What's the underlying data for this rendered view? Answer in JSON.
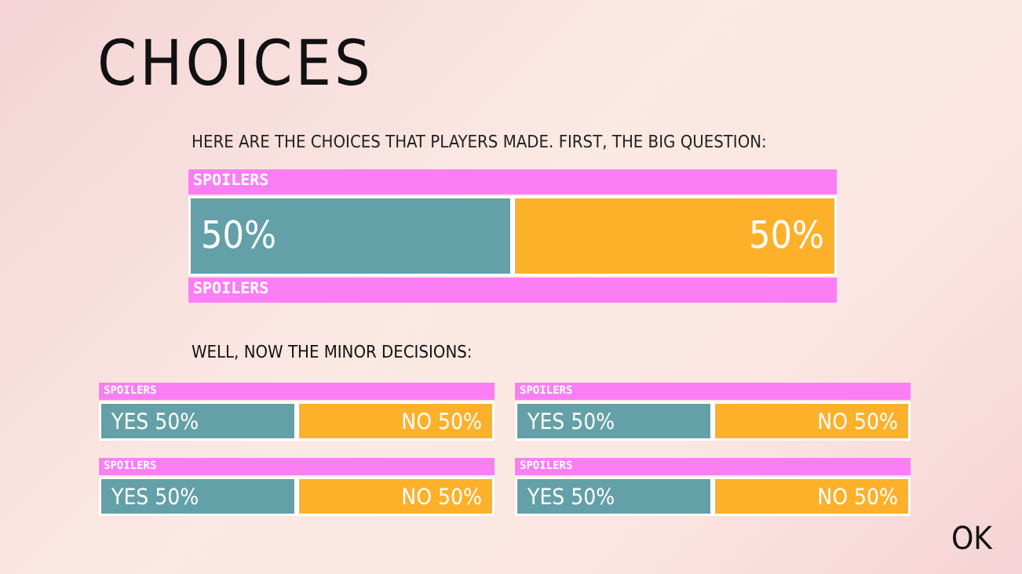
{
  "chart_data": [
    {
      "type": "bar",
      "title": "CHOICES",
      "subtitle": "HERE ARE THE CHOICES THAT PLAYERS MADE. FIRST, THE BIG QUESTION:",
      "orientation": "horizontal",
      "stacked": true,
      "categories": [
        null
      ],
      "xlim": [
        0,
        100
      ],
      "tick_labels": false,
      "annotations": [
        "SPOILERS",
        "SPOILERS"
      ],
      "series": [
        {
          "color": "#64a0a8",
          "values": [
            50
          ],
          "value_labels": [
            "50%"
          ]
        },
        {
          "color": "#fdb12b",
          "values": [
            50
          ],
          "value_labels": [
            "50%"
          ]
        }
      ]
    },
    {
      "type": "bar",
      "title": "WELL, NOW THE MINOR DECISIONS:",
      "orientation": "horizontal",
      "stacked": true,
      "categories": [
        null
      ],
      "xlim": [
        0,
        100
      ],
      "tick_labels": false,
      "annotations": [
        "SPOILERS"
      ],
      "series": [
        {
          "color": "#64a0a8",
          "values": [
            50
          ],
          "value_labels": [
            "YES 50%"
          ]
        },
        {
          "color": "#fdb12b",
          "values": [
            50
          ],
          "value_labels": [
            "NO 50%"
          ]
        }
      ]
    },
    {
      "type": "bar",
      "orientation": "horizontal",
      "stacked": true,
      "categories": [
        null
      ],
      "xlim": [
        0,
        100
      ],
      "tick_labels": false,
      "annotations": [
        "SPOILERS"
      ],
      "series": [
        {
          "color": "#64a0a8",
          "values": [
            50
          ],
          "value_labels": [
            "YES 50%"
          ]
        },
        {
          "color": "#fdb12b",
          "values": [
            50
          ],
          "value_labels": [
            "NO 50%"
          ]
        }
      ]
    },
    {
      "type": "bar",
      "orientation": "horizontal",
      "stacked": true,
      "categories": [
        null
      ],
      "xlim": [
        0,
        100
      ],
      "tick_labels": false,
      "annotations": [
        "SPOILERS"
      ],
      "series": [
        {
          "color": "#64a0a8",
          "values": [
            50
          ],
          "value_labels": [
            "YES 50%"
          ]
        },
        {
          "color": "#fdb12b",
          "values": [
            50
          ],
          "value_labels": [
            "NO 50%"
          ]
        }
      ]
    },
    {
      "type": "bar",
      "orientation": "horizontal",
      "stacked": true,
      "categories": [
        null
      ],
      "xlim": [
        0,
        100
      ],
      "tick_labels": false,
      "annotations": [
        "SPOILERS",
        "OK"
      ],
      "series": [
        {
          "color": "#64a0a8",
          "values": [
            50
          ],
          "value_labels": [
            "YES 50%"
          ]
        },
        {
          "color": "#fdb12b",
          "values": [
            50
          ],
          "value_labels": [
            "NO 50%"
          ]
        }
      ]
    }
  ]
}
